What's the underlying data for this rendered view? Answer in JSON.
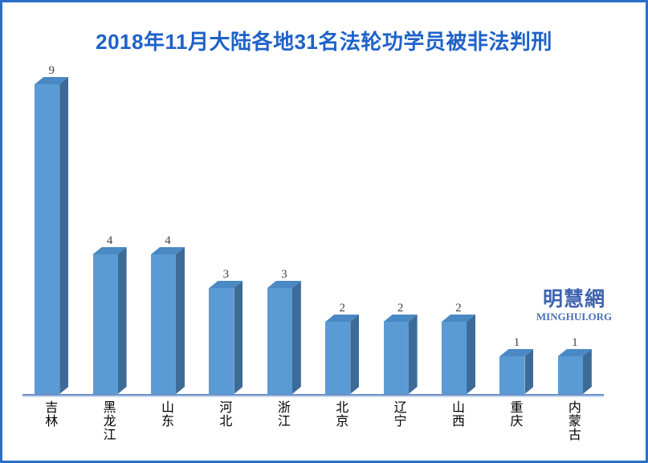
{
  "frame": {
    "border_color": "#2b6fc8",
    "background_color": "#ffffff"
  },
  "title": {
    "text": "2018年11月大陆各地31名法轮功学员被非法判刑",
    "color": "#1e62c8"
  },
  "logo": {
    "cn": "明慧網",
    "en": "MINGHUI.ORG",
    "color": "#3e63b0"
  },
  "chart_data": {
    "type": "bar",
    "style": "3d-column",
    "title": "2018年11月大陆各地31名法轮功学员被非法判刑",
    "categories": [
      "吉林",
      "黑龙江",
      "山东",
      "河北",
      "浙江",
      "北京",
      "辽宁",
      "山西",
      "重庆",
      "内蒙古"
    ],
    "values": [
      9,
      4,
      4,
      3,
      3,
      2,
      2,
      2,
      1,
      1
    ],
    "total": 31,
    "ylim": [
      0,
      9
    ],
    "gridlines": false,
    "legend": false,
    "y_axis_visible": false,
    "data_labels_position": "above-bars",
    "bar_front_color": "#5b9bd5",
    "bar_side_color": "#3d6b97",
    "bar_top_color": "#4a89c4",
    "axis_line_color": "#6d8fc7",
    "value_label_color": "#3f3f3f",
    "category_label_color": "#000000"
  }
}
